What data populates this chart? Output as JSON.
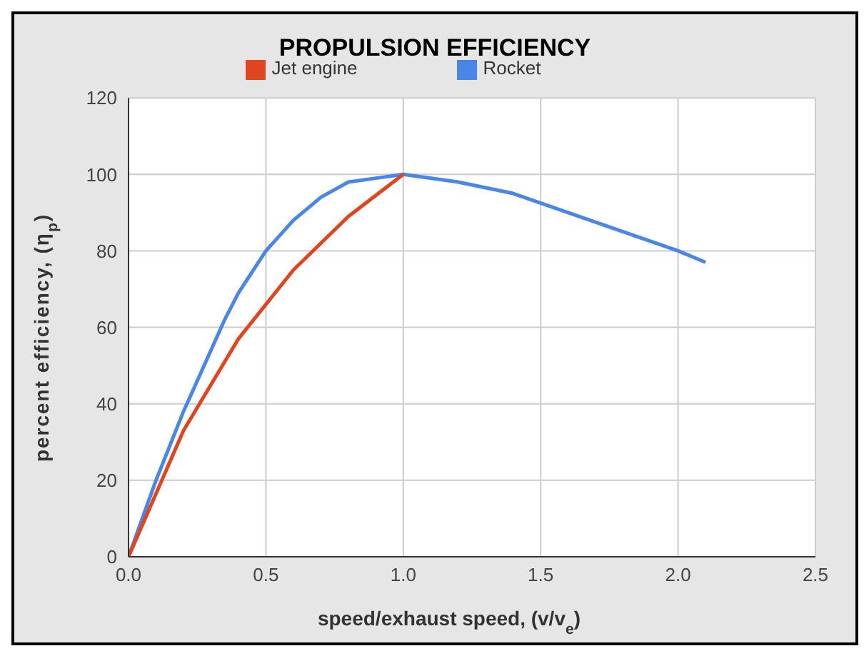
{
  "chart_data": {
    "type": "line",
    "title": "PROPULSION EFFICIENCY",
    "xlabel": "speed/exhaust speed, (v/v$_{e}$)",
    "ylabel": "percent efficiency, (η$_{p}$)",
    "series": [
      {
        "name": "Rocket",
        "color": "#4a86e8",
        "x": [
          0,
          0.1,
          0.2,
          0.35,
          0.4,
          0.5,
          0.6,
          0.7,
          0.8,
          0.9,
          1.0,
          1.2,
          1.4,
          1.6,
          1.8,
          2.0,
          2.1
        ],
        "values": [
          0,
          20,
          38,
          62,
          69,
          80,
          88,
          94,
          98,
          99,
          100,
          98,
          95,
          90,
          85,
          80,
          77
        ]
      },
      {
        "name": "Jet engine",
        "color": "#e0451f",
        "x": [
          0,
          0.2,
          0.4,
          0.6,
          0.8,
          1.0
        ],
        "values": [
          0,
          33,
          57,
          75,
          89,
          100
        ]
      }
    ],
    "xlim": [
      0,
      2.5
    ],
    "xticks": [
      {
        "value": 0,
        "label": "0.0"
      },
      0.5,
      {
        "value": 1,
        "label": "1.0"
      },
      1.5,
      {
        "value": 2,
        "label": "2.0"
      },
      2.5
    ],
    "ylim": [
      0,
      120
    ],
    "yticks": [
      0,
      20,
      40,
      60,
      80,
      100,
      120
    ],
    "grid": true,
    "legend": "top",
    "marker": "none",
    "line_style": "solid"
  }
}
